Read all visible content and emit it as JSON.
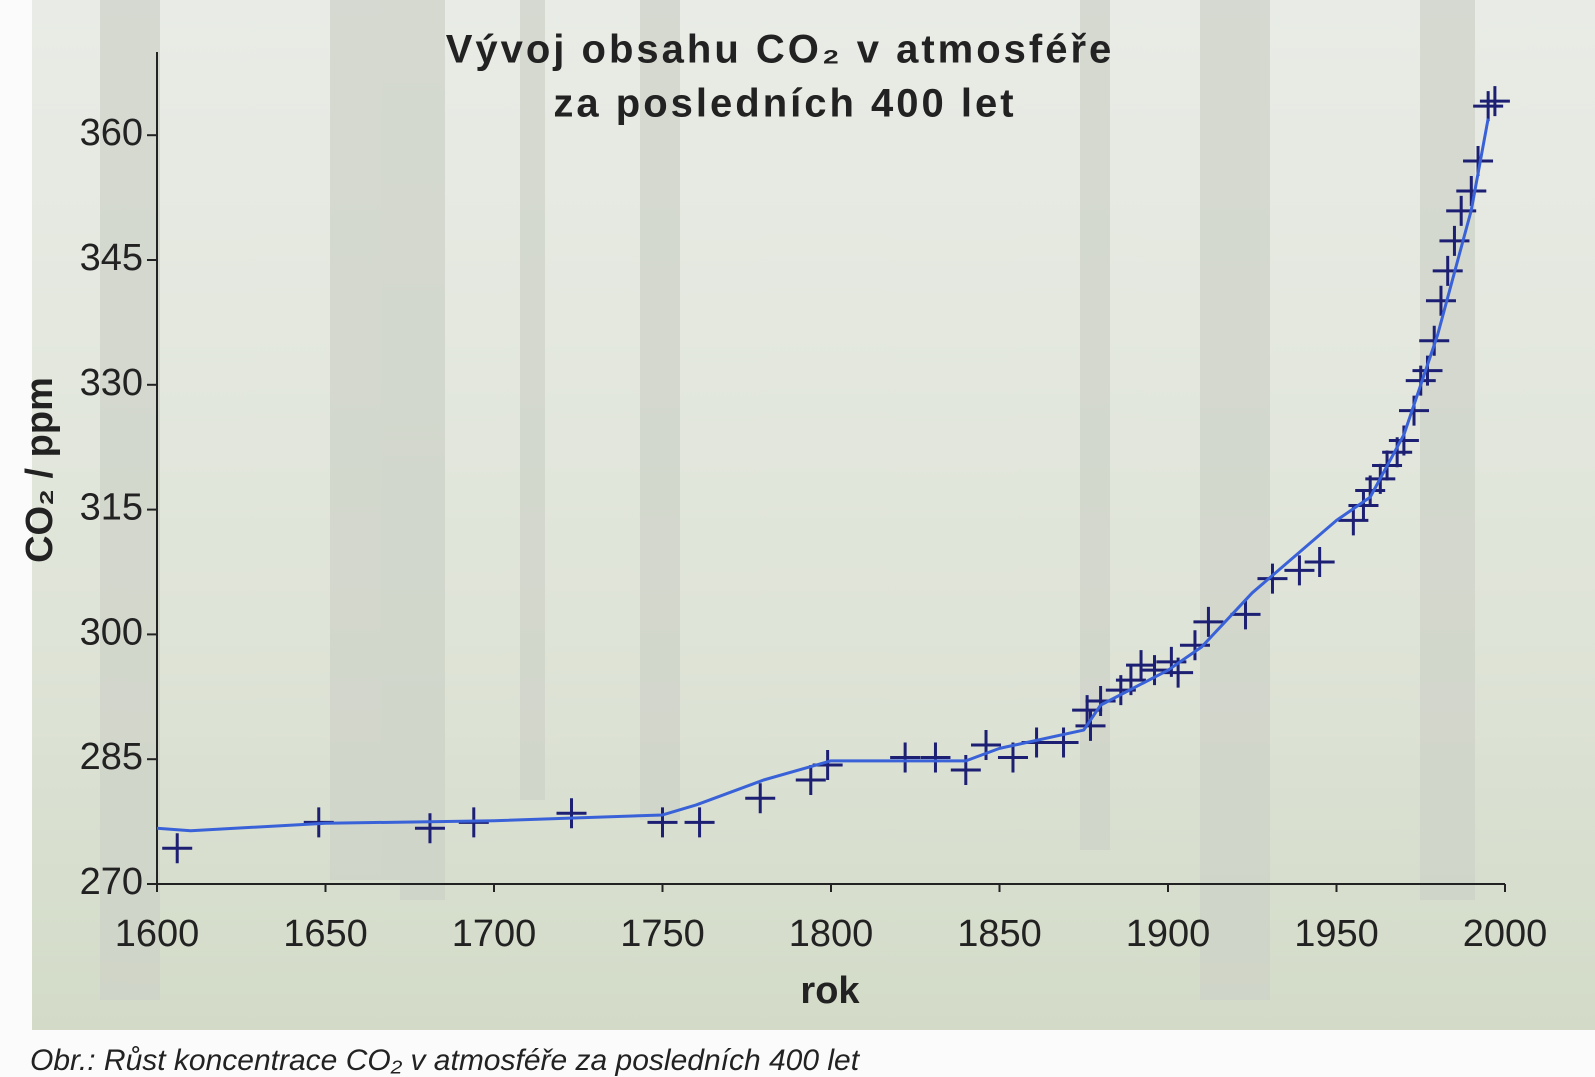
{
  "chart_data": {
    "type": "scatter",
    "title": [
      "Vývoj obsahu CO₂ v atmosféře",
      "za posledních 400 let"
    ],
    "x_label": "rok",
    "y_label": "CO₂ / ppm",
    "caption": "Obr.: Růst koncentrace CO₂ v atmosféře za posledních 400 let",
    "xlim": [
      1600,
      2000
    ],
    "ylim": [
      270,
      370
    ],
    "xticks": [
      1600,
      1650,
      1700,
      1750,
      1800,
      1850,
      1900,
      1950,
      2000
    ],
    "yticks": [
      270,
      285,
      300,
      315,
      330,
      345,
      360
    ],
    "series": [
      {
        "type": "scatter",
        "color": "#1c1f72",
        "x": [
          1606,
          1648,
          1681,
          1694,
          1723,
          1750,
          1761,
          1779,
          1794,
          1799,
          1822,
          1831,
          1840,
          1846,
          1854,
          1861,
          1869,
          1876,
          1877,
          1880,
          1886,
          1889,
          1892,
          1896,
          1901,
          1903,
          1908,
          1912,
          1923,
          1931,
          1939,
          1945,
          1955,
          1958,
          1960,
          1963,
          1965,
          1968,
          1970,
          1973,
          1975,
          1977,
          1979,
          1981,
          1983,
          1985,
          1987,
          1990,
          1992,
          1995,
          1997
        ],
        "values": [
          274.3,
          277.4,
          276.7,
          277.4,
          278.5,
          277.4,
          277.4,
          280.3,
          282.5,
          284.3,
          285.2,
          285.2,
          283.7,
          286.7,
          285.2,
          287,
          287,
          290.9,
          289,
          292,
          293.3,
          294.5,
          296.3,
          295.7,
          296.7,
          295.4,
          298.7,
          301.5,
          302.4,
          306.7,
          307.7,
          308.7,
          313.7,
          315.5,
          317.3,
          318.7,
          320.3,
          321.9,
          323.3,
          326.9,
          330.5,
          331.7,
          335.3,
          340.1,
          343.7,
          347.3,
          350.9,
          353.3,
          356.9,
          363.5,
          364.1
        ]
      },
      {
        "type": "line",
        "color": "#3a62d8",
        "x": [
          1600,
          1610,
          1650,
          1700,
          1750,
          1760,
          1780,
          1800,
          1840,
          1850,
          1875,
          1880,
          1900,
          1910,
          1925,
          1950,
          1960,
          1970,
          1980,
          1990,
          1995
        ],
        "values": [
          276.7,
          276.4,
          277.3,
          277.6,
          278.3,
          279.5,
          282.5,
          284.8,
          284.8,
          286.3,
          288.5,
          291.5,
          295.7,
          298.5,
          305,
          313.7,
          316.5,
          324,
          336,
          351,
          362
        ]
      }
    ]
  }
}
